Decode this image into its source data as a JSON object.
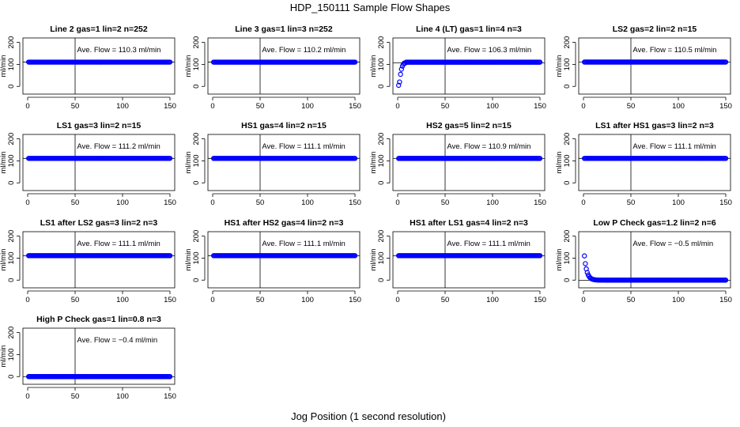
{
  "figure": {
    "title": "HDP_150111  Sample Flow Shapes",
    "xlabel": "Jog Position (1 second resolution)",
    "point_color": "#0000ff"
  },
  "chart_data": [
    {
      "type": "scatter",
      "title": "Line 2 gas=1 lin=2 n=252",
      "ylabel": "ml/min",
      "annotation": "Ave. Flow =  110.3  ml/min",
      "xlim": [
        0,
        150
      ],
      "ylim": [
        0,
        200
      ],
      "xticks": [
        0,
        50,
        100,
        150
      ],
      "yticks": [
        0,
        100,
        200
      ],
      "vline": 50,
      "hline": 110.3,
      "series": [
        {
          "profile": "flat",
          "level": 110.3,
          "x": [
            1,
            150
          ]
        }
      ]
    },
    {
      "type": "scatter",
      "title": "Line 3 gas=1 lin=3 n=252",
      "ylabel": "ml/min",
      "annotation": "Ave. Flow =  110.2  ml/min",
      "xlim": [
        0,
        150
      ],
      "ylim": [
        0,
        200
      ],
      "xticks": [
        0,
        50,
        100,
        150
      ],
      "yticks": [
        0,
        100,
        200
      ],
      "vline": 50,
      "hline": 110.2,
      "series": [
        {
          "profile": "flat",
          "level": 110.2,
          "x": [
            1,
            150
          ]
        }
      ]
    },
    {
      "type": "scatter",
      "title": "Line 4 (LT) gas=1 lin=4 n=3",
      "ylabel": "ml/min",
      "annotation": "Ave. Flow =  106.3  ml/min",
      "xlim": [
        0,
        150
      ],
      "ylim": [
        0,
        200
      ],
      "xticks": [
        0,
        50,
        100,
        150
      ],
      "yticks": [
        0,
        100,
        200
      ],
      "vline": 50,
      "hline": 106.3,
      "series": [
        {
          "profile": "rise",
          "level": 110,
          "x": [
            1,
            150
          ]
        }
      ]
    },
    {
      "type": "scatter",
      "title": "LS2 gas=2 lin=2 n=15",
      "ylabel": "ml/min",
      "annotation": "Ave. Flow =  110.5  ml/min",
      "xlim": [
        0,
        150
      ],
      "ylim": [
        0,
        200
      ],
      "xticks": [
        0,
        50,
        100,
        150
      ],
      "yticks": [
        0,
        100,
        200
      ],
      "vline": 50,
      "hline": 110.5,
      "series": [
        {
          "profile": "flat",
          "level": 110.5,
          "x": [
            1,
            150
          ]
        }
      ]
    },
    {
      "type": "scatter",
      "title": "LS1 gas=3 lin=2 n=15",
      "ylabel": "ml/min",
      "annotation": "Ave. Flow =  111.2  ml/min",
      "xlim": [
        0,
        150
      ],
      "ylim": [
        0,
        200
      ],
      "xticks": [
        0,
        50,
        100,
        150
      ],
      "yticks": [
        0,
        100,
        200
      ],
      "vline": 50,
      "hline": 111.2,
      "series": [
        {
          "profile": "flat",
          "level": 111.2,
          "x": [
            1,
            150
          ]
        }
      ]
    },
    {
      "type": "scatter",
      "title": "HS1 gas=4 lin=2 n=15",
      "ylabel": "ml/min",
      "annotation": "Ave. Flow =  111.1  ml/min",
      "xlim": [
        0,
        150
      ],
      "ylim": [
        0,
        200
      ],
      "xticks": [
        0,
        50,
        100,
        150
      ],
      "yticks": [
        0,
        100,
        200
      ],
      "vline": 50,
      "hline": 111.1,
      "series": [
        {
          "profile": "flat",
          "level": 111.1,
          "x": [
            1,
            150
          ]
        }
      ]
    },
    {
      "type": "scatter",
      "title": "HS2 gas=5 lin=2 n=15",
      "ylabel": "ml/min",
      "annotation": "Ave. Flow =  110.9  ml/min",
      "xlim": [
        0,
        150
      ],
      "ylim": [
        0,
        200
      ],
      "xticks": [
        0,
        50,
        100,
        150
      ],
      "yticks": [
        0,
        100,
        200
      ],
      "vline": 50,
      "hline": 110.9,
      "series": [
        {
          "profile": "flat",
          "level": 110.9,
          "x": [
            1,
            150
          ]
        }
      ]
    },
    {
      "type": "scatter",
      "title": "LS1 after HS1 gas=3 lin=2 n=3",
      "ylabel": "ml/min",
      "annotation": "Ave. Flow =  111.1  ml/min",
      "xlim": [
        0,
        150
      ],
      "ylim": [
        0,
        200
      ],
      "xticks": [
        0,
        50,
        100,
        150
      ],
      "yticks": [
        0,
        100,
        200
      ],
      "vline": 50,
      "hline": 111.1,
      "series": [
        {
          "profile": "flat",
          "level": 111.1,
          "x": [
            1,
            150
          ]
        }
      ]
    },
    {
      "type": "scatter",
      "title": "LS1 after LS2 gas=3 lin=2 n=3",
      "ylabel": "ml/min",
      "annotation": "Ave. Flow =  111.1  ml/min",
      "xlim": [
        0,
        150
      ],
      "ylim": [
        0,
        200
      ],
      "xticks": [
        0,
        50,
        100,
        150
      ],
      "yticks": [
        0,
        100,
        200
      ],
      "vline": 50,
      "hline": 111.1,
      "series": [
        {
          "profile": "flat",
          "level": 111.1,
          "x": [
            1,
            150
          ]
        }
      ]
    },
    {
      "type": "scatter",
      "title": "HS1 after HS2 gas=4 lin=2 n=3",
      "ylabel": "ml/min",
      "annotation": "Ave. Flow =  111.1  ml/min",
      "xlim": [
        0,
        150
      ],
      "ylim": [
        0,
        200
      ],
      "xticks": [
        0,
        50,
        100,
        150
      ],
      "yticks": [
        0,
        100,
        200
      ],
      "vline": 50,
      "hline": 111.1,
      "series": [
        {
          "profile": "flat",
          "level": 111.1,
          "x": [
            1,
            150
          ]
        }
      ]
    },
    {
      "type": "scatter",
      "title": "HS1 after LS1 gas=4 lin=2 n=3",
      "ylabel": "ml/min",
      "annotation": "Ave. Flow =  111.1  ml/min",
      "xlim": [
        0,
        150
      ],
      "ylim": [
        0,
        200
      ],
      "xticks": [
        0,
        50,
        100,
        150
      ],
      "yticks": [
        0,
        100,
        200
      ],
      "vline": 50,
      "hline": 111.1,
      "series": [
        {
          "profile": "flat",
          "level": 111.1,
          "x": [
            1,
            150
          ]
        }
      ]
    },
    {
      "type": "scatter",
      "title": "Low P Check gas=1.2 lin=2 n=6",
      "ylabel": "ml/min",
      "annotation": "Ave. Flow =  −0.5  ml/min",
      "xlim": [
        0,
        150
      ],
      "ylim": [
        0,
        200
      ],
      "xticks": [
        0,
        50,
        100,
        150
      ],
      "yticks": [
        0,
        100,
        200
      ],
      "vline": 50,
      "hline": -0.5,
      "series": [
        {
          "profile": "decay",
          "level": 0,
          "x": [
            1,
            150
          ]
        }
      ]
    },
    {
      "type": "scatter",
      "title": "High P Check gas=1 lin=0.8 n=3",
      "ylabel": "ml/min",
      "annotation": "Ave. Flow =  −0.4  ml/min",
      "xlim": [
        0,
        150
      ],
      "ylim": [
        0,
        200
      ],
      "xticks": [
        0,
        50,
        100,
        150
      ],
      "yticks": [
        0,
        100,
        200
      ],
      "vline": 50,
      "hline": -0.4,
      "series": [
        {
          "profile": "flat",
          "level": 0,
          "x": [
            1,
            150
          ]
        }
      ]
    }
  ]
}
